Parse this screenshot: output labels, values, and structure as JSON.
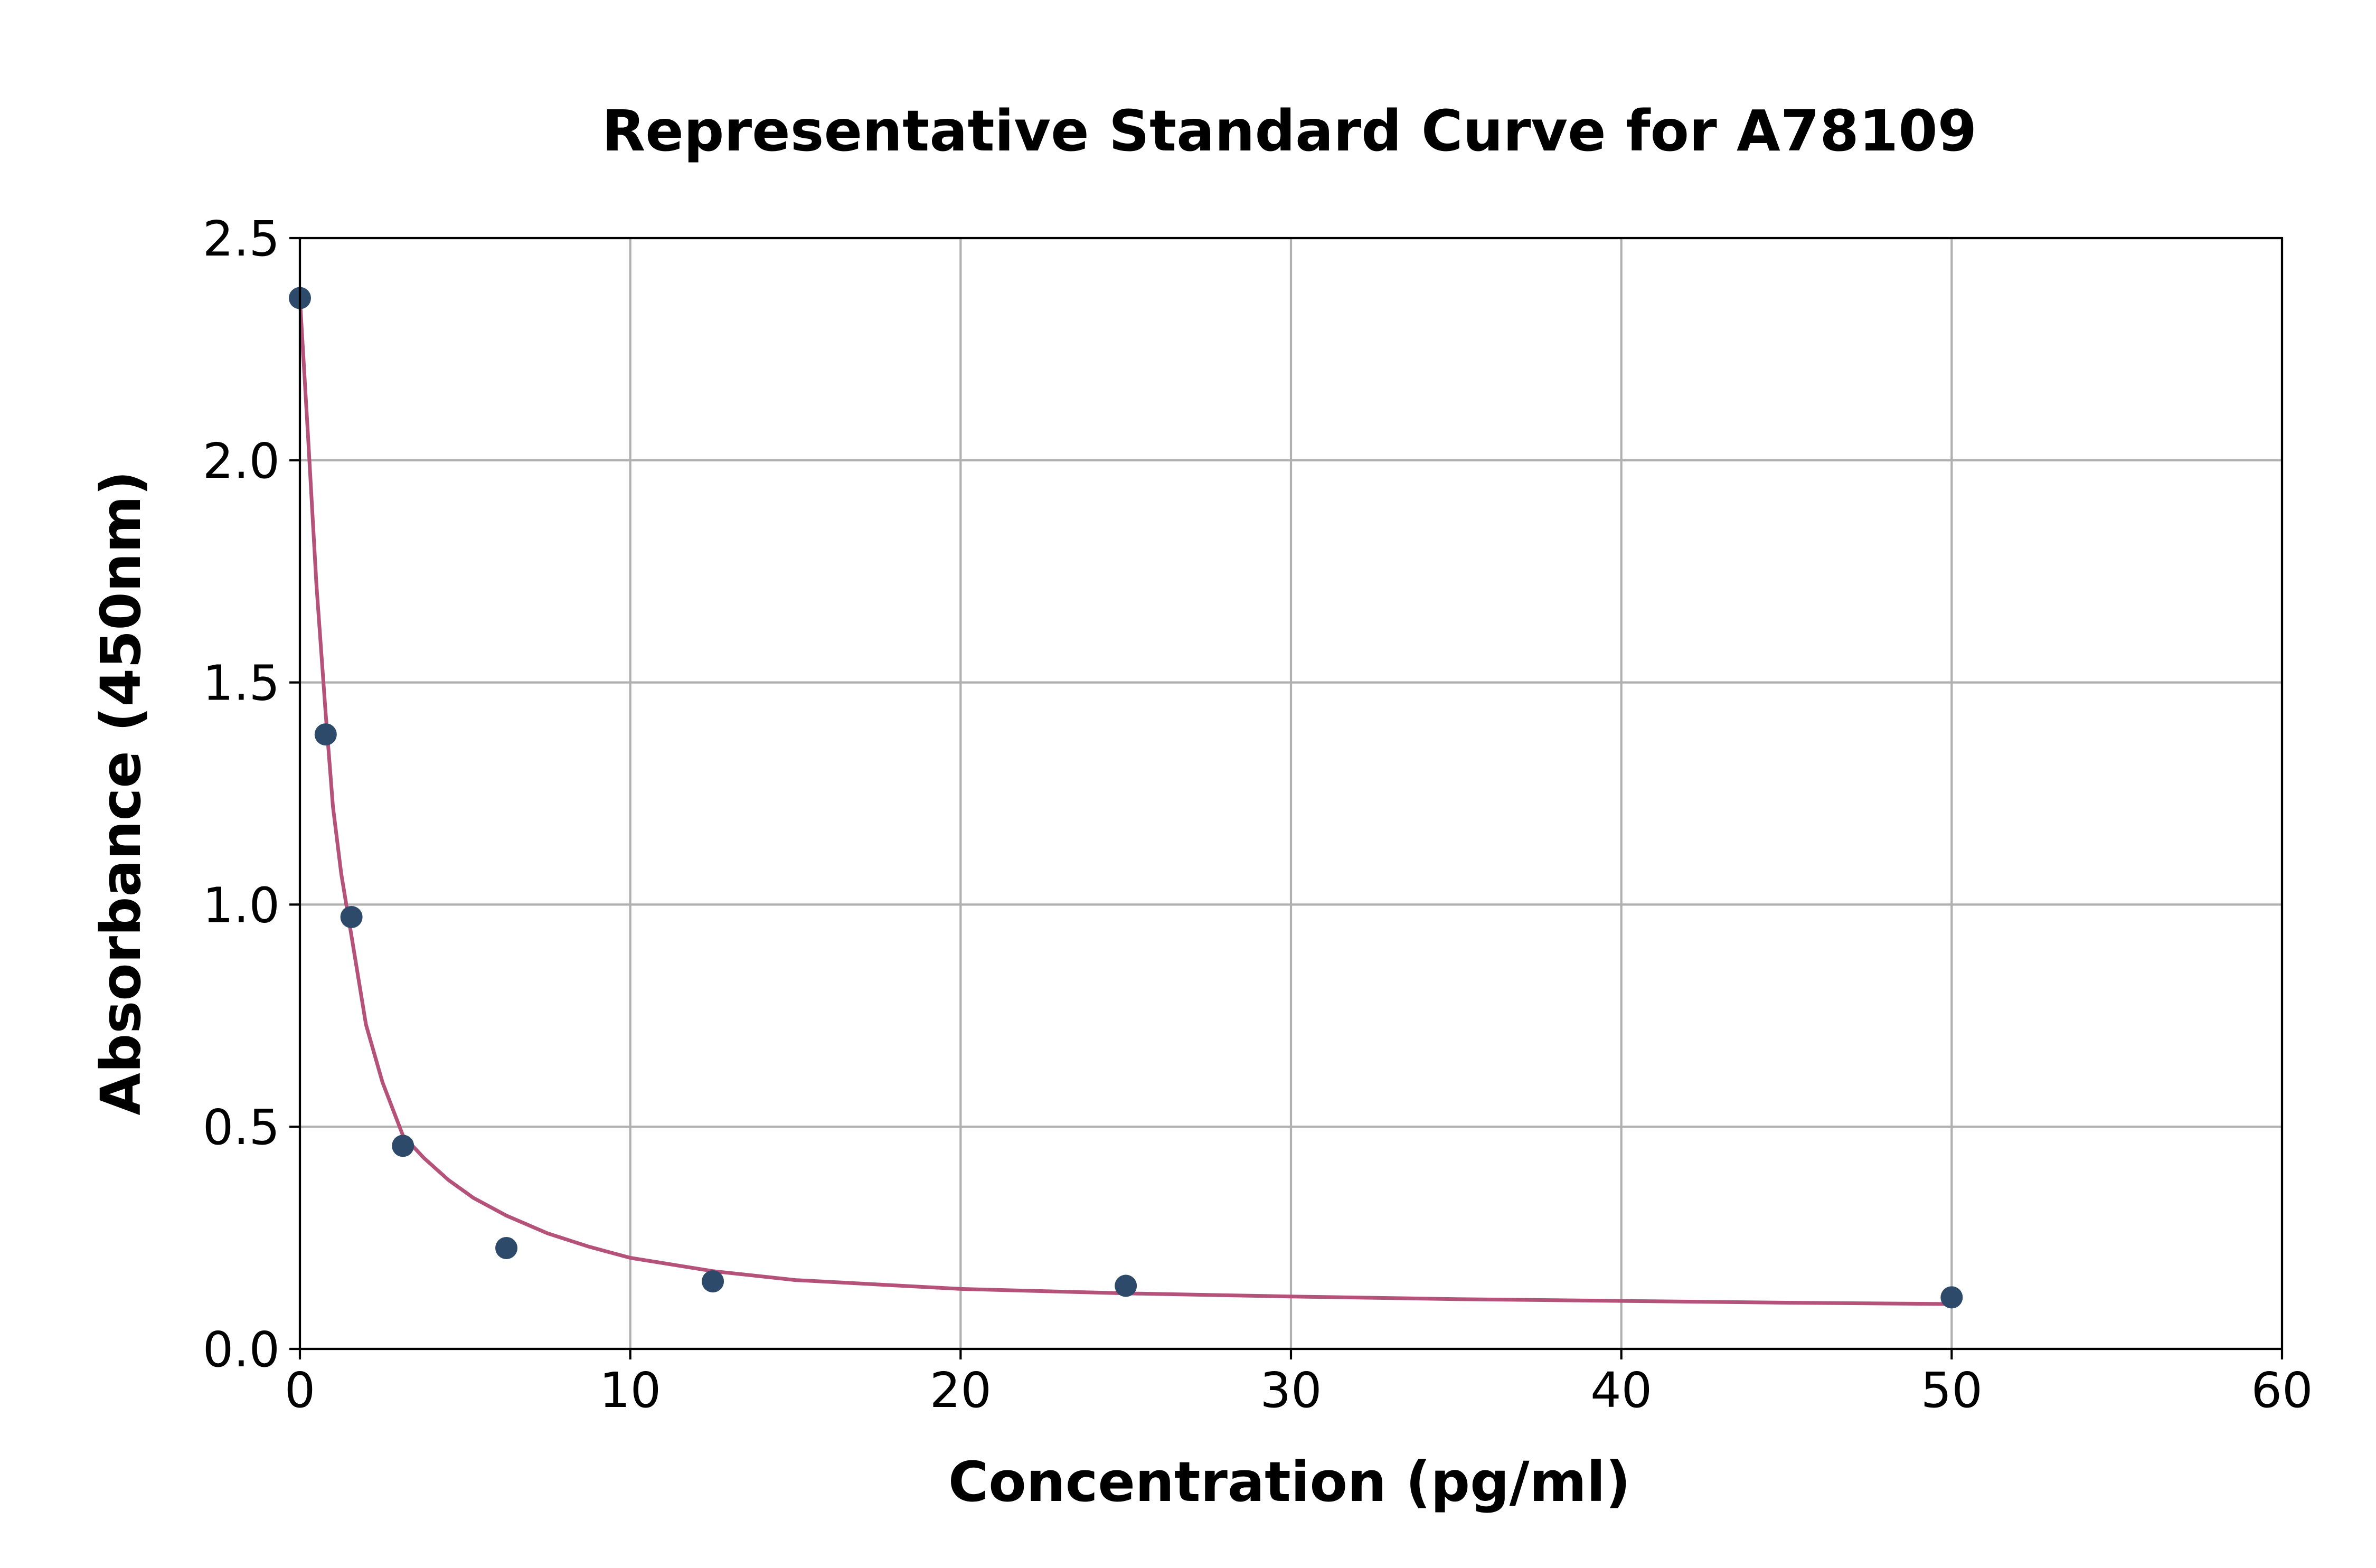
{
  "chart_data": {
    "type": "scatter",
    "title": "Representative Standard Curve for A78109",
    "xlabel": "Concentration (pg/ml)",
    "ylabel": "Absorbance (450nm)",
    "xlim": [
      0,
      60
    ],
    "ylim": [
      0,
      2.5
    ],
    "xticks": [
      0,
      10,
      20,
      30,
      40,
      50,
      60
    ],
    "yticks": [
      0.0,
      0.5,
      1.0,
      1.5,
      2.0,
      2.5
    ],
    "xtick_labels": [
      "0",
      "10",
      "20",
      "30",
      "40",
      "50",
      "60"
    ],
    "ytick_labels": [
      "0.0",
      "0.5",
      "1.0",
      "1.5",
      "2.0",
      "2.5"
    ],
    "grid": true,
    "series": [
      {
        "kind": "points",
        "color": "#2e4a6b",
        "x": [
          0,
          0.78,
          1.56,
          3.12,
          6.25,
          12.5,
          25,
          50
        ],
        "y": [
          2.365,
          1.383,
          0.972,
          0.457,
          0.227,
          0.152,
          0.142,
          0.116
        ]
      },
      {
        "kind": "fit-curve",
        "color": "#b5527a",
        "x": [
          0,
          0.25,
          0.5,
          0.78,
          1.0,
          1.25,
          1.56,
          2.0,
          2.5,
          3.12,
          3.75,
          4.5,
          5.25,
          6.25,
          7.5,
          8.75,
          10,
          12.5,
          15,
          17.5,
          20,
          25,
          30,
          35,
          40,
          45,
          50
        ],
        "y": [
          2.365,
          2.05,
          1.72,
          1.43,
          1.22,
          1.07,
          0.93,
          0.73,
          0.6,
          0.48,
          0.43,
          0.38,
          0.34,
          0.3,
          0.26,
          0.23,
          0.205,
          0.175,
          0.155,
          0.145,
          0.135,
          0.125,
          0.118,
          0.112,
          0.108,
          0.104,
          0.101
        ]
      }
    ]
  }
}
